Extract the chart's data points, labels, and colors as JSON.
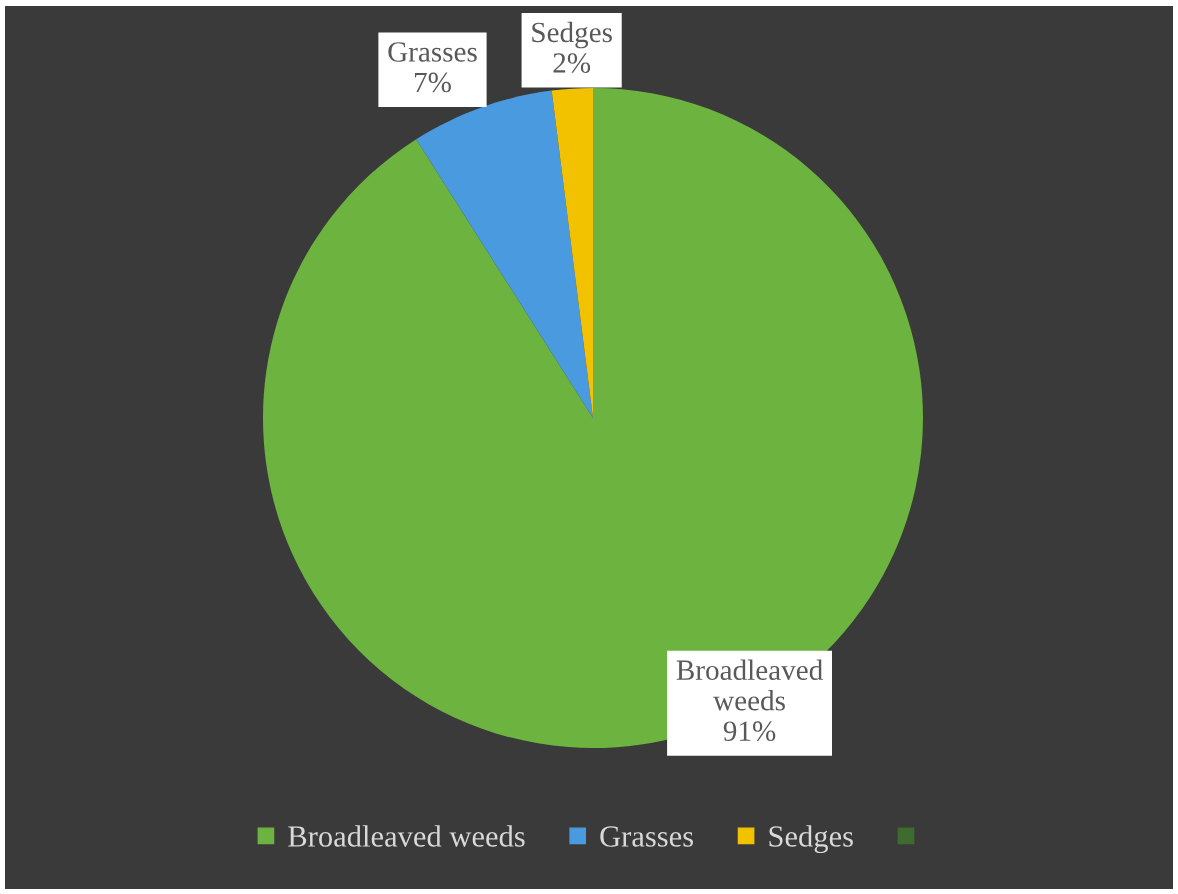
{
  "chart_data": {
    "type": "pie",
    "categories": [
      "Broadleaved weeds",
      "Grasses",
      "Sedges",
      null
    ],
    "values": [
      91,
      7,
      2,
      0
    ],
    "colors": [
      "#6cb33f",
      "#4a9ae0",
      "#f2c200",
      "#3e6b2e"
    ],
    "value_labels": [
      "91%",
      "7%",
      "2%",
      null
    ],
    "legend": "bottom"
  }
}
